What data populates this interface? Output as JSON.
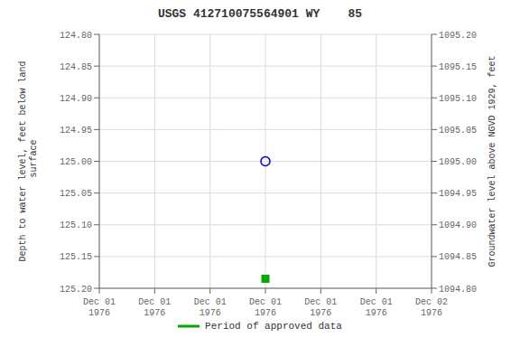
{
  "chart_data": {
    "type": "scatter",
    "title": "USGS 412710075564901 WY    85",
    "ylabel": "Depth to water level, feet below land\n surface",
    "y2label": "Groundwater level above NGVD 1929, feet",
    "categories": [
      "Dec 01\n1976",
      "Dec 01\n1976",
      "Dec 01\n1976",
      "Dec 01\n1976",
      "Dec 01\n1976",
      "Dec 01\n1976",
      "Dec 02\n1976"
    ],
    "ylim": [
      125.2,
      124.8
    ],
    "yticks": [
      {
        "value": 124.8,
        "label": "124.80"
      },
      124.85,
      {
        "value": 124.9,
        "label": "124.90"
      },
      124.95,
      {
        "value": 125.0,
        "label": "125.00"
      },
      125.05,
      {
        "value": 125.1,
        "label": "125.10"
      },
      125.15,
      {
        "value": 125.2,
        "label": "125.20"
      }
    ],
    "y2lim": [
      1094.8,
      1095.2
    ],
    "y2ticks": [
      {
        "value": 1094.8,
        "label": "1094.80"
      },
      1094.85,
      {
        "value": 1094.9,
        "label": "1094.90"
      },
      1094.95,
      {
        "value": 1095.0,
        "label": "1095.00"
      },
      1095.05,
      {
        "value": 1095.1,
        "label": "1095.10"
      },
      1095.15,
      {
        "value": 1095.2,
        "label": "1095.20"
      }
    ],
    "grid": true,
    "legend": "bottom",
    "series": [
      {
        "color": "#0000cc",
        "marker": "open_circle",
        "values": [
          null,
          null,
          null,
          125.0,
          null,
          null,
          null
        ]
      },
      {
        "name": "Period of approved data",
        "color": "#00aa00",
        "marker": "square",
        "values": [
          null,
          null,
          null,
          125.185,
          null,
          null,
          null
        ]
      }
    ]
  }
}
